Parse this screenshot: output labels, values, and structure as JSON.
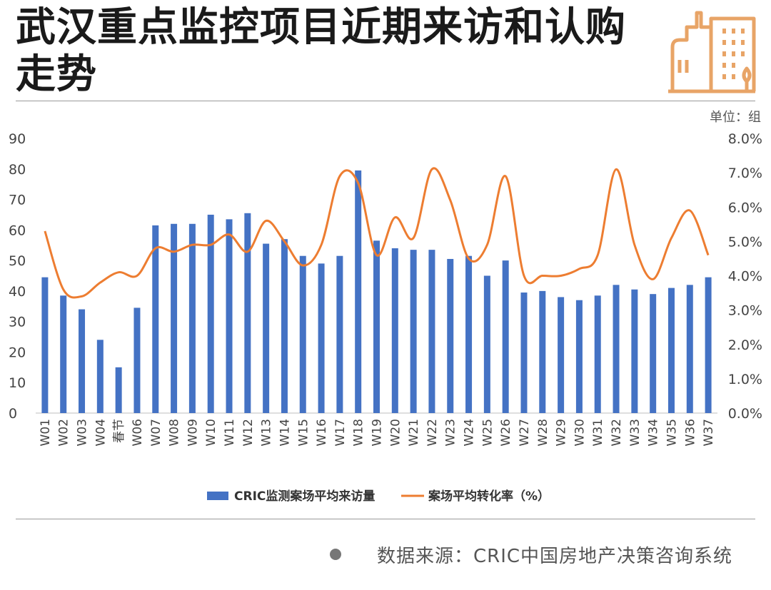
{
  "header": {
    "title": "武汉重点监控项目近期来访和认购走势",
    "unit_label": "单位：组"
  },
  "footer": {
    "source": "数据来源：CRIC中国房地产决策咨询系统"
  },
  "colors": {
    "bar": "#4472c4",
    "line": "#ed7d31",
    "logo": "#e8a467"
  },
  "icons": {
    "logo": "building-icon"
  },
  "chart_data": {
    "type": "bar",
    "categories": [
      "W01",
      "W02",
      "W03",
      "W04",
      "春节",
      "W06",
      "W07",
      "W08",
      "W09",
      "W10",
      "W11",
      "W12",
      "W13",
      "W14",
      "W15",
      "W16",
      "W17",
      "W18",
      "W19",
      "W20",
      "W21",
      "W22",
      "W23",
      "W24",
      "W25",
      "W26",
      "W27",
      "W28",
      "W29",
      "W30",
      "W31",
      "W32",
      "W33",
      "W34",
      "W35",
      "W36",
      "W37"
    ],
    "series": [
      {
        "name": "CRIC监测案场平均来访量",
        "type": "bar",
        "axis": "left",
        "values": [
          44.5,
          38.5,
          34,
          24,
          15,
          34.5,
          61.5,
          62,
          62,
          65,
          63.5,
          65.5,
          55.5,
          57,
          51.5,
          49,
          51.5,
          79.5,
          56.5,
          54,
          53.5,
          53.5,
          50.5,
          51.5,
          45,
          50,
          39.5,
          40,
          38,
          37,
          38.5,
          42,
          40.5,
          39,
          41,
          42,
          44.5
        ]
      },
      {
        "name": "案场平均转化率（%）",
        "type": "line",
        "axis": "right",
        "values": [
          5.3,
          3.6,
          3.4,
          3.8,
          4.1,
          4.0,
          4.8,
          4.7,
          4.9,
          4.9,
          5.2,
          4.7,
          5.6,
          5.0,
          4.3,
          4.9,
          6.9,
          6.7,
          4.6,
          5.7,
          5.1,
          7.1,
          6.2,
          4.5,
          4.9,
          6.9,
          4.0,
          4.0,
          4.0,
          4.2,
          4.6,
          7.1,
          4.9,
          3.9,
          5.1,
          5.9,
          4.6
        ]
      }
    ],
    "ylim": [
      0,
      90
    ],
    "yticks": [
      "0",
      "10",
      "20",
      "30",
      "40",
      "50",
      "60",
      "70",
      "80",
      "90"
    ],
    "y2lim": [
      0,
      8
    ],
    "y2ticks": [
      "0.0%",
      "1.0%",
      "2.0%",
      "3.0%",
      "4.0%",
      "5.0%",
      "6.0%",
      "7.0%",
      "8.0%"
    ],
    "legend": "bottom",
    "grid": false
  }
}
